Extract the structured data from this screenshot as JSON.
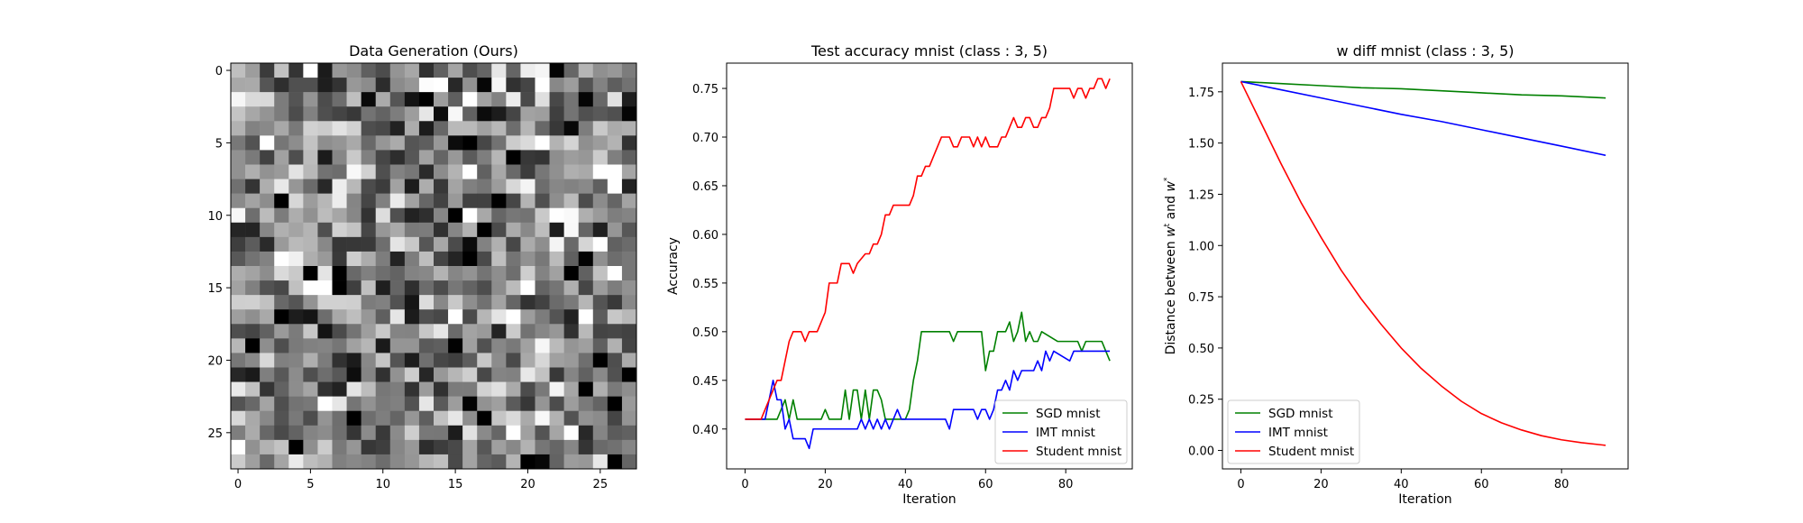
{
  "chart_data": [
    {
      "type": "heatmap",
      "title": "Data Generation (Ours)",
      "xlabel": "",
      "ylabel": "",
      "colormap": "gray",
      "grid_size": [
        28,
        28
      ],
      "xticks": [
        0,
        5,
        10,
        15,
        20,
        25
      ],
      "yticks": [
        0,
        5,
        10,
        15,
        20,
        25
      ],
      "xlim": [
        -0.5,
        27.5
      ],
      "ylim": [
        27.5,
        -0.5
      ],
      "value_range": [
        0,
        1
      ],
      "random_seed": 7
    },
    {
      "type": "line",
      "title": "Test accuracy mnist (class : 3, 5)",
      "xlabel": "Iteration",
      "ylabel": "Accuracy",
      "xlim": [
        -4.6,
        96.6
      ],
      "ylim": [
        0.359,
        0.776
      ],
      "xticks": [
        0,
        20,
        40,
        60,
        80
      ],
      "yticks": [
        0.4,
        0.45,
        0.5,
        0.55,
        0.6,
        0.65,
        0.7,
        0.75
      ],
      "ytick_labels": [
        "0.40",
        "0.45",
        "0.50",
        "0.55",
        "0.60",
        "0.65",
        "0.70",
        "0.75"
      ],
      "legend_position": "lower-right",
      "series": [
        {
          "name": "SGD mnist",
          "color": "#008000",
          "points": [
            [
              0,
              0.41
            ],
            [
              5,
              0.41
            ],
            [
              8,
              0.41
            ],
            [
              10,
              0.43
            ],
            [
              11,
              0.41
            ],
            [
              12,
              0.43
            ],
            [
              13,
              0.41
            ],
            [
              19,
              0.41
            ],
            [
              20,
              0.42
            ],
            [
              21,
              0.41
            ],
            [
              24,
              0.41
            ],
            [
              25,
              0.44
            ],
            [
              26,
              0.41
            ],
            [
              27,
              0.44
            ],
            [
              28,
              0.44
            ],
            [
              29,
              0.41
            ],
            [
              30,
              0.44
            ],
            [
              31,
              0.41
            ],
            [
              32,
              0.44
            ],
            [
              33,
              0.44
            ],
            [
              34,
              0.43
            ],
            [
              35,
              0.41
            ],
            [
              40,
              0.41
            ],
            [
              41,
              0.42
            ],
            [
              42,
              0.45
            ],
            [
              43,
              0.47
            ],
            [
              44,
              0.5
            ],
            [
              51,
              0.5
            ],
            [
              52,
              0.49
            ],
            [
              53,
              0.5
            ],
            [
              59,
              0.5
            ],
            [
              60,
              0.46
            ],
            [
              61,
              0.48
            ],
            [
              62,
              0.48
            ],
            [
              63,
              0.5
            ],
            [
              65,
              0.5
            ],
            [
              66,
              0.51
            ],
            [
              67,
              0.49
            ],
            [
              68,
              0.5
            ],
            [
              69,
              0.52
            ],
            [
              70,
              0.49
            ],
            [
              71,
              0.5
            ],
            [
              72,
              0.49
            ],
            [
              73,
              0.49
            ],
            [
              74,
              0.5
            ],
            [
              78,
              0.49
            ],
            [
              83,
              0.49
            ],
            [
              84,
              0.48
            ],
            [
              85,
              0.49
            ],
            [
              89,
              0.49
            ],
            [
              90,
              0.48
            ],
            [
              91,
              0.47
            ]
          ]
        },
        {
          "name": "IMT mnist",
          "color": "#0000ff",
          "points": [
            [
              0,
              0.41
            ],
            [
              5,
              0.41
            ],
            [
              6,
              0.43
            ],
            [
              7,
              0.45
            ],
            [
              8,
              0.43
            ],
            [
              9,
              0.43
            ],
            [
              10,
              0.4
            ],
            [
              11,
              0.41
            ],
            [
              12,
              0.39
            ],
            [
              15,
              0.39
            ],
            [
              16,
              0.38
            ],
            [
              17,
              0.4
            ],
            [
              28,
              0.4
            ],
            [
              29,
              0.41
            ],
            [
              30,
              0.4
            ],
            [
              31,
              0.41
            ],
            [
              32,
              0.4
            ],
            [
              33,
              0.41
            ],
            [
              34,
              0.4
            ],
            [
              35,
              0.41
            ],
            [
              36,
              0.4
            ],
            [
              37,
              0.41
            ],
            [
              38,
              0.42
            ],
            [
              39,
              0.41
            ],
            [
              50,
              0.41
            ],
            [
              51,
              0.4
            ],
            [
              52,
              0.42
            ],
            [
              57,
              0.42
            ],
            [
              58,
              0.41
            ],
            [
              59,
              0.42
            ],
            [
              60,
              0.42
            ],
            [
              61,
              0.41
            ],
            [
              62,
              0.42
            ],
            [
              63,
              0.44
            ],
            [
              64,
              0.44
            ],
            [
              65,
              0.45
            ],
            [
              66,
              0.44
            ],
            [
              67,
              0.46
            ],
            [
              68,
              0.45
            ],
            [
              69,
              0.46
            ],
            [
              72,
              0.46
            ],
            [
              73,
              0.47
            ],
            [
              74,
              0.46
            ],
            [
              75,
              0.48
            ],
            [
              76,
              0.47
            ],
            [
              77,
              0.48
            ],
            [
              81,
              0.47
            ],
            [
              82,
              0.48
            ],
            [
              91,
              0.48
            ]
          ]
        },
        {
          "name": "Student mnist",
          "color": "#ff0000",
          "points": [
            [
              0,
              0.41
            ],
            [
              4,
              0.41
            ],
            [
              5,
              0.42
            ],
            [
              6,
              0.43
            ],
            [
              7,
              0.44
            ],
            [
              8,
              0.45
            ],
            [
              9,
              0.45
            ],
            [
              10,
              0.47
            ],
            [
              11,
              0.49
            ],
            [
              12,
              0.5
            ],
            [
              14,
              0.5
            ],
            [
              15,
              0.49
            ],
            [
              16,
              0.5
            ],
            [
              18,
              0.5
            ],
            [
              19,
              0.51
            ],
            [
              20,
              0.52
            ],
            [
              21,
              0.55
            ],
            [
              22,
              0.55
            ],
            [
              23,
              0.55
            ],
            [
              24,
              0.57
            ],
            [
              26,
              0.57
            ],
            [
              27,
              0.56
            ],
            [
              28,
              0.57
            ],
            [
              30,
              0.58
            ],
            [
              31,
              0.58
            ],
            [
              32,
              0.59
            ],
            [
              33,
              0.59
            ],
            [
              34,
              0.6
            ],
            [
              35,
              0.62
            ],
            [
              36,
              0.62
            ],
            [
              37,
              0.63
            ],
            [
              39,
              0.63
            ],
            [
              40,
              0.63
            ],
            [
              41,
              0.63
            ],
            [
              42,
              0.64
            ],
            [
              43,
              0.66
            ],
            [
              44,
              0.66
            ],
            [
              45,
              0.67
            ],
            [
              46,
              0.67
            ],
            [
              47,
              0.68
            ],
            [
              48,
              0.69
            ],
            [
              49,
              0.7
            ],
            [
              50,
              0.7
            ],
            [
              51,
              0.7
            ],
            [
              52,
              0.69
            ],
            [
              53,
              0.69
            ],
            [
              54,
              0.7
            ],
            [
              56,
              0.7
            ],
            [
              57,
              0.69
            ],
            [
              58,
              0.7
            ],
            [
              59,
              0.69
            ],
            [
              60,
              0.7
            ],
            [
              61,
              0.69
            ],
            [
              62,
              0.69
            ],
            [
              63,
              0.69
            ],
            [
              64,
              0.7
            ],
            [
              65,
              0.7
            ],
            [
              66,
              0.71
            ],
            [
              67,
              0.72
            ],
            [
              68,
              0.71
            ],
            [
              69,
              0.71
            ],
            [
              70,
              0.72
            ],
            [
              71,
              0.72
            ],
            [
              72,
              0.71
            ],
            [
              73,
              0.71
            ],
            [
              74,
              0.72
            ],
            [
              75,
              0.72
            ],
            [
              76,
              0.73
            ],
            [
              77,
              0.75
            ],
            [
              78,
              0.75
            ],
            [
              79,
              0.75
            ],
            [
              80,
              0.75
            ],
            [
              81,
              0.75
            ],
            [
              82,
              0.74
            ],
            [
              83,
              0.75
            ],
            [
              84,
              0.75
            ],
            [
              85,
              0.74
            ],
            [
              86,
              0.75
            ],
            [
              87,
              0.75
            ],
            [
              88,
              0.76
            ],
            [
              89,
              0.76
            ],
            [
              90,
              0.75
            ],
            [
              91,
              0.76
            ]
          ]
        }
      ]
    },
    {
      "type": "line",
      "title": "w diff mnist (class : 3, 5)",
      "xlabel": "Iteration",
      "ylabel": "Distance between w^t and w^*",
      "ylabel_parts": {
        "text1": "Distance between ",
        "sym1": "w",
        "sup1": "t",
        "text2": " and ",
        "sym2": "w",
        "sup2": "*"
      },
      "xlim": [
        -4.6,
        96.6
      ],
      "ylim": [
        -0.09,
        1.89
      ],
      "xticks": [
        0,
        20,
        40,
        60,
        80
      ],
      "yticks": [
        0.0,
        0.25,
        0.5,
        0.75,
        1.0,
        1.25,
        1.5,
        1.75
      ],
      "ytick_labels": [
        "0.00",
        "0.25",
        "0.50",
        "0.75",
        "1.00",
        "1.25",
        "1.50",
        "1.75"
      ],
      "legend_position": "lower-left",
      "series": [
        {
          "name": "SGD mnist",
          "color": "#008000",
          "points": [
            [
              0,
              1.8
            ],
            [
              5,
              1.795
            ],
            [
              10,
              1.79
            ],
            [
              20,
              1.78
            ],
            [
              30,
              1.77
            ],
            [
              40,
              1.765
            ],
            [
              50,
              1.755
            ],
            [
              60,
              1.745
            ],
            [
              70,
              1.735
            ],
            [
              80,
              1.73
            ],
            [
              91,
              1.72
            ]
          ]
        },
        {
          "name": "IMT mnist",
          "color": "#0000ff",
          "points": [
            [
              0,
              1.8
            ],
            [
              10,
              1.76
            ],
            [
              20,
              1.72
            ],
            [
              30,
              1.68
            ],
            [
              40,
              1.64
            ],
            [
              50,
              1.605
            ],
            [
              60,
              1.565
            ],
            [
              70,
              1.525
            ],
            [
              80,
              1.485
            ],
            [
              91,
              1.44
            ]
          ]
        },
        {
          "name": "Student mnist",
          "color": "#ff0000",
          "points": [
            [
              0,
              1.8
            ],
            [
              5,
              1.6
            ],
            [
              10,
              1.4
            ],
            [
              15,
              1.21
            ],
            [
              20,
              1.04
            ],
            [
              25,
              0.88
            ],
            [
              30,
              0.74
            ],
            [
              35,
              0.615
            ],
            [
              40,
              0.5
            ],
            [
              45,
              0.4
            ],
            [
              50,
              0.315
            ],
            [
              55,
              0.24
            ],
            [
              60,
              0.18
            ],
            [
              65,
              0.135
            ],
            [
              70,
              0.1
            ],
            [
              75,
              0.072
            ],
            [
              80,
              0.052
            ],
            [
              85,
              0.038
            ],
            [
              91,
              0.025
            ]
          ]
        }
      ]
    }
  ]
}
